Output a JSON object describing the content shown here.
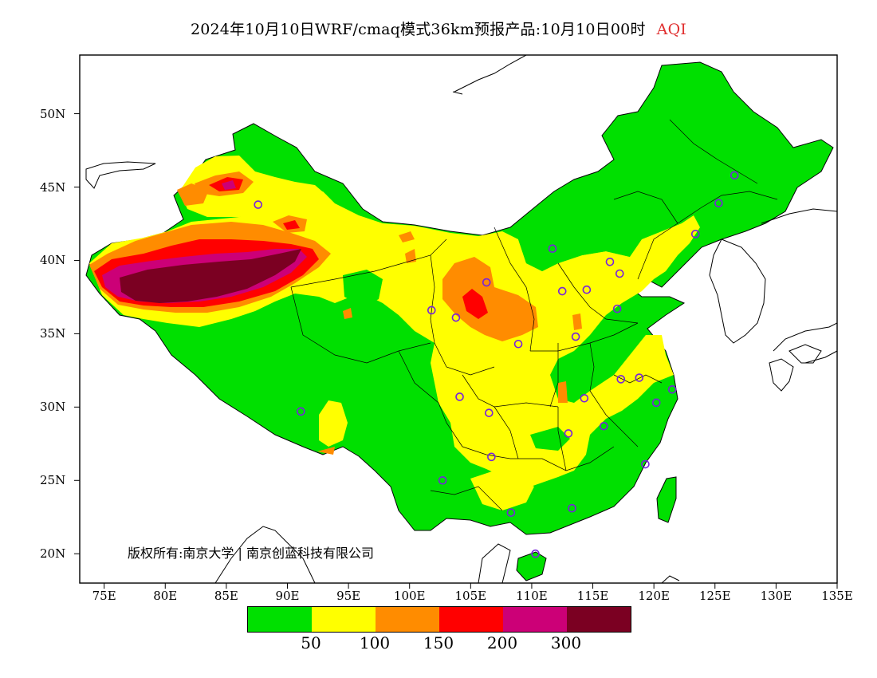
{
  "title": {
    "main": "2024年10月10日WRF/cmaq模式36km预报产品:10月10日00时",
    "variable": "AQI",
    "variable_color": "#e03030"
  },
  "copyright": "版权所有:南京大学 | 南京创蓝科技有限公司",
  "axes": {
    "lat_labels": [
      "50N",
      "45N",
      "40N",
      "35N",
      "30N",
      "25N",
      "20N"
    ],
    "lat_values": [
      50,
      45,
      40,
      35,
      30,
      25,
      20
    ],
    "lon_labels": [
      "75E",
      "80E",
      "85E",
      "90E",
      "95E",
      "100E",
      "105E",
      "110E",
      "115E",
      "120E",
      "125E",
      "130E",
      "135E"
    ],
    "lon_values": [
      75,
      80,
      85,
      90,
      95,
      100,
      105,
      110,
      115,
      120,
      125,
      130,
      135
    ],
    "lon_range": [
      73,
      135
    ],
    "lat_range": [
      18,
      54
    ]
  },
  "legend": {
    "colors": [
      "#00e000",
      "#ffff00",
      "#ff8c00",
      "#ff0000",
      "#cc0077",
      "#7b0022"
    ],
    "breaks": [
      "50",
      "100",
      "150",
      "200",
      "300"
    ]
  },
  "station_color": "#7722dd",
  "stations": [
    {
      "lon": 87.6,
      "lat": 43.8
    },
    {
      "lon": 91.1,
      "lat": 29.7
    },
    {
      "lon": 101.8,
      "lat": 36.6
    },
    {
      "lon": 103.8,
      "lat": 36.1
    },
    {
      "lon": 106.3,
      "lat": 38.5
    },
    {
      "lon": 108.9,
      "lat": 34.3
    },
    {
      "lon": 111.7,
      "lat": 40.8
    },
    {
      "lon": 112.5,
      "lat": 37.9
    },
    {
      "lon": 114.5,
      "lat": 38.0
    },
    {
      "lon": 116.4,
      "lat": 39.9
    },
    {
      "lon": 117.2,
      "lat": 39.1
    },
    {
      "lon": 117.0,
      "lat": 36.7
    },
    {
      "lon": 113.6,
      "lat": 34.8
    },
    {
      "lon": 114.3,
      "lat": 30.6
    },
    {
      "lon": 117.3,
      "lat": 31.9
    },
    {
      "lon": 118.8,
      "lat": 32.0
    },
    {
      "lon": 121.5,
      "lat": 31.2
    },
    {
      "lon": 120.2,
      "lat": 30.3
    },
    {
      "lon": 115.9,
      "lat": 28.7
    },
    {
      "lon": 119.3,
      "lat": 26.1
    },
    {
      "lon": 113.0,
      "lat": 28.2
    },
    {
      "lon": 106.5,
      "lat": 29.6
    },
    {
      "lon": 104.1,
      "lat": 30.7
    },
    {
      "lon": 106.7,
      "lat": 26.6
    },
    {
      "lon": 102.7,
      "lat": 25.0
    },
    {
      "lon": 108.3,
      "lat": 22.8
    },
    {
      "lon": 113.3,
      "lat": 23.1
    },
    {
      "lon": 110.3,
      "lat": 20.0
    },
    {
      "lon": 123.4,
      "lat": 41.8
    },
    {
      "lon": 125.3,
      "lat": 43.9
    },
    {
      "lon": 126.6,
      "lat": 45.8
    }
  ]
}
